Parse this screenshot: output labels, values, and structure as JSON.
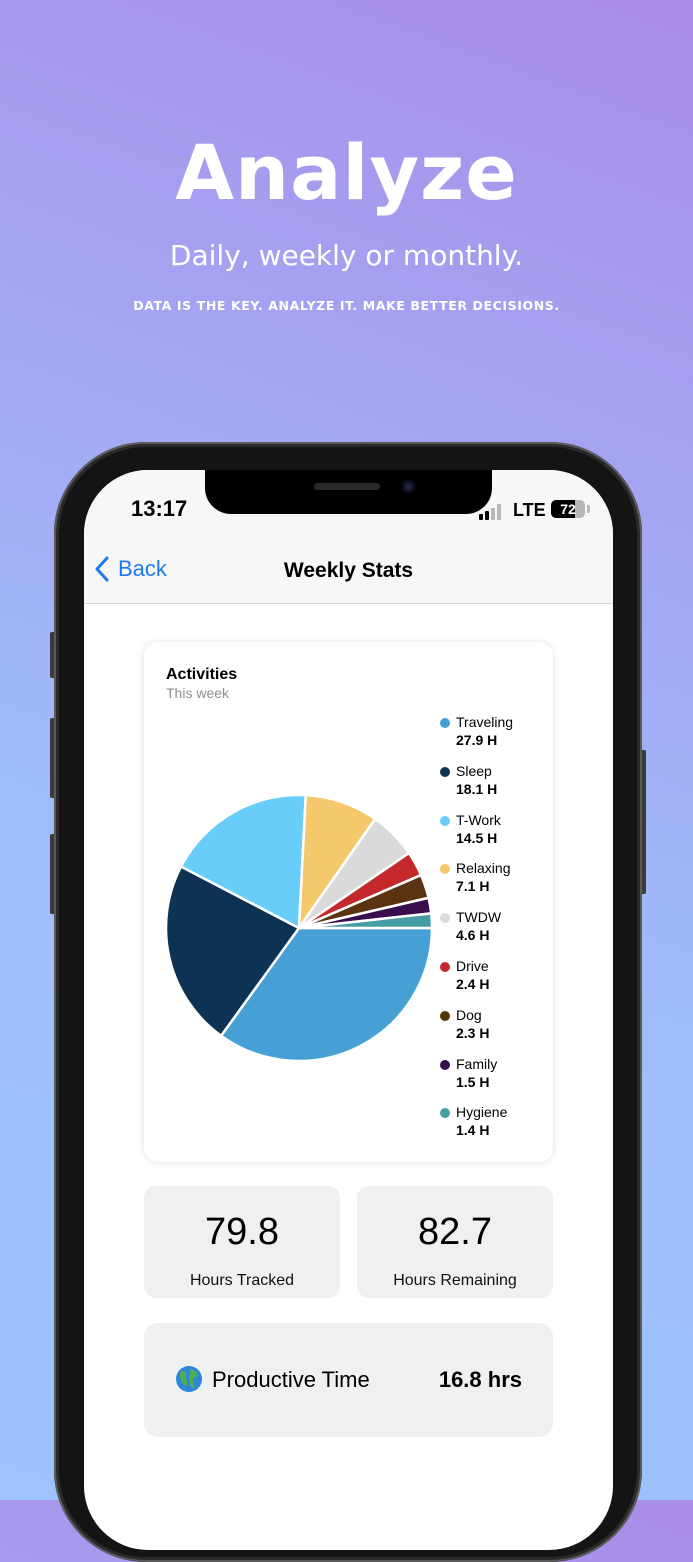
{
  "hero": {
    "title": "Analyze",
    "subtitle": "Daily, weekly or monthly.",
    "tagline": "DATA IS THE KEY. ANALYZE IT. MAKE BETTER DECISIONS."
  },
  "status_bar": {
    "time": "13:17",
    "network": "LTE",
    "battery_percent": "72",
    "signal_bars_active": 2
  },
  "nav": {
    "back_label": "Back",
    "title": "Weekly Stats",
    "accent_color": "#1e7cf2"
  },
  "activities_card": {
    "title": "Activities",
    "subtitle": "This week"
  },
  "chart_data": {
    "type": "pie",
    "title": "Activities",
    "subtitle": "This week",
    "legend_position": "right",
    "slices": [
      {
        "name": "Traveling",
        "value": 27.9,
        "label": "27.9 H",
        "color": "#47a0d5"
      },
      {
        "name": "Sleep",
        "value": 18.1,
        "label": "18.1 H",
        "color": "#0e3253"
      },
      {
        "name": "T-Work",
        "value": 14.5,
        "label": "14.5 H",
        "color": "#68cef9"
      },
      {
        "name": "Relaxing",
        "value": 7.1,
        "label": "7.1 H",
        "color": "#f5c96b"
      },
      {
        "name": "TWDW",
        "value": 4.6,
        "label": "4.6 H",
        "color": "#dadada"
      },
      {
        "name": "Drive",
        "value": 2.4,
        "label": "2.4 H",
        "color": "#c5282b"
      },
      {
        "name": "Dog",
        "value": 2.3,
        "label": "2.3 H",
        "color": "#5a3310"
      },
      {
        "name": "Family",
        "value": 1.5,
        "label": "1.5 H",
        "color": "#3a0d4c"
      },
      {
        "name": "Hygiene",
        "value": 1.4,
        "label": "1.4 H",
        "color": "#459ea5"
      }
    ]
  },
  "stats": {
    "tracked_value": "79.8",
    "tracked_label": "Hours Tracked",
    "remaining_value": "82.7",
    "remaining_label": "Hours Remaining"
  },
  "productive": {
    "icon": "globe-icon",
    "label": "Productive Time",
    "value": "16.8 hrs"
  }
}
